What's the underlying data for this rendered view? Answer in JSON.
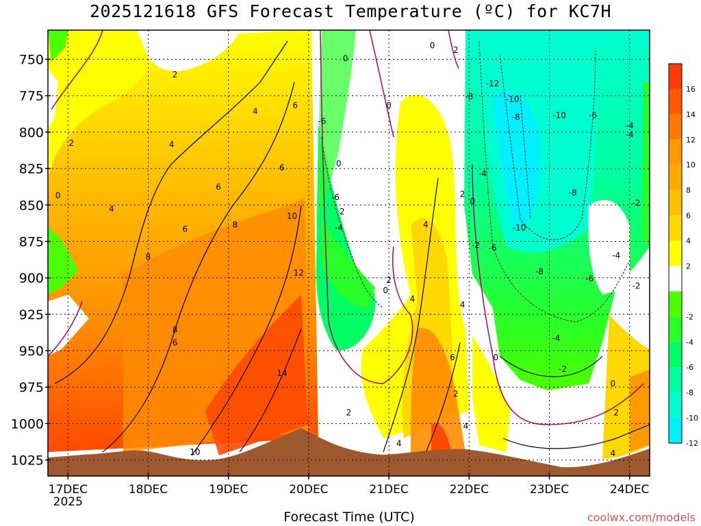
{
  "chart_data": {
    "type": "heatmap",
    "title": "2025121618 GFS Forecast Temperature (ºC) for KC7H",
    "xlabel": "Forecast Time (UTC)",
    "ylabel": "",
    "credit": "coolwx.com/models",
    "x_ticks": [
      {
        "label": "17DEC",
        "hours": 6
      },
      {
        "label": "18DEC",
        "hours": 30
      },
      {
        "label": "19DEC",
        "hours": 54
      },
      {
        "label": "20DEC",
        "hours": 78
      },
      {
        "label": "21DEC",
        "hours": 102
      },
      {
        "label": "22DEC",
        "hours": 126
      },
      {
        "label": "23DEC",
        "hours": 150
      },
      {
        "label": "24DEC",
        "hours": 174
      }
    ],
    "x_sublabel": "2025",
    "xlim_hours": [
      0,
      180
    ],
    "y_ticks": [
      750,
      775,
      800,
      825,
      850,
      875,
      900,
      925,
      950,
      975,
      1000,
      1025
    ],
    "ylim_hpa": [
      730,
      1036
    ],
    "colorbar": [
      {
        "min": 14,
        "max": 16,
        "color": "#ff3a00",
        "label": "16"
      },
      {
        "min": 12,
        "max": 14,
        "color": "#ff5a00",
        "label": "14"
      },
      {
        "min": 10,
        "max": 12,
        "color": "#ff7a00",
        "label": "12"
      },
      {
        "min": 8,
        "max": 10,
        "color": "#ff9a00",
        "label": "10"
      },
      {
        "min": 6,
        "max": 8,
        "color": "#ffaa00",
        "label": "8"
      },
      {
        "min": 4,
        "max": 6,
        "color": "#ffc000",
        "label": "6"
      },
      {
        "min": 2,
        "max": 4,
        "color": "#ffd800",
        "label": "4"
      },
      {
        "min": -2,
        "max": 2,
        "color": "#ffff00",
        "label": "2"
      },
      {
        "min": -2,
        "max": 2,
        "color": "#ffffff",
        "label": ""
      },
      {
        "min": -4,
        "max": -2,
        "color": "#4cff00",
        "label": "-2"
      },
      {
        "min": -6,
        "max": -4,
        "color": "#28ff28",
        "label": "-4"
      },
      {
        "min": -8,
        "max": -6,
        "color": "#00ff64",
        "label": "-6"
      },
      {
        "min": -10,
        "max": -8,
        "color": "#00ffa0",
        "label": "-8"
      },
      {
        "min": -12,
        "max": -10,
        "color": "#00ffd0",
        "label": "-10"
      },
      {
        "min": -14,
        "max": -12,
        "color": "#00f0ff",
        "label": "-12"
      }
    ],
    "regions": [
      {
        "name": "warm-morning-17dec",
        "hours": [
          0,
          18
        ],
        "temp_c": 2
      },
      {
        "name": "warm-sector-18-19dec",
        "hours": [
          18,
          60
        ],
        "temp_c": 6
      },
      {
        "name": "max-warm-20dec",
        "hours": [
          60,
          80
        ],
        "temp_c": 14
      },
      {
        "name": "cold-pocket-20-21dec",
        "hours": [
          80,
          104
        ],
        "temp_c": -4
      },
      {
        "name": "warm-band-21dec",
        "hours": [
          104,
          126
        ],
        "temp_c": 4
      },
      {
        "name": "cold-outbreak-22-24dec",
        "hours": [
          126,
          180
        ],
        "temp_c": -10
      }
    ],
    "contour_labels": [
      {
        "text": "2",
        "hours": 38,
        "hpa": 762
      },
      {
        "text": "4",
        "hours": 37,
        "hpa": 810
      },
      {
        "text": "6",
        "hours": 51,
        "hpa": 839
      },
      {
        "text": "8",
        "hours": 30,
        "hpa": 887
      },
      {
        "text": "8",
        "hours": 56,
        "hpa": 865
      },
      {
        "text": "6",
        "hours": 41,
        "hpa": 868
      },
      {
        "text": "4",
        "hours": 19,
        "hpa": 854
      },
      {
        "text": "2",
        "hours": 7,
        "hpa": 809
      },
      {
        "text": "0",
        "hours": 3,
        "hpa": 845
      },
      {
        "text": "4",
        "hours": 62,
        "hpa": 787
      },
      {
        "text": "6",
        "hours": 70,
        "hpa": 826
      },
      {
        "text": "6",
        "hours": 74,
        "hpa": 783
      },
      {
        "text": "10",
        "hours": 73,
        "hpa": 859
      },
      {
        "text": "12",
        "hours": 75,
        "hpa": 898
      },
      {
        "text": "14",
        "hours": 70,
        "hpa": 967
      },
      {
        "text": "10",
        "hours": 44,
        "hpa": 1021
      },
      {
        "text": "8",
        "hours": 38,
        "hpa": 937
      },
      {
        "text": "6",
        "hours": 38,
        "hpa": 946
      },
      {
        "text": "-6",
        "hours": 82,
        "hpa": 794
      },
      {
        "text": "-6",
        "hours": 86,
        "hpa": 846
      },
      {
        "text": "0",
        "hours": 89,
        "hpa": 751
      },
      {
        "text": "0",
        "hours": 102,
        "hpa": 783
      },
      {
        "text": "0",
        "hours": 87,
        "hpa": 823
      },
      {
        "text": "2",
        "hours": 88,
        "hpa": 856
      },
      {
        "text": "-4",
        "hours": 87,
        "hpa": 867
      },
      {
        "text": "2",
        "hours": 102,
        "hpa": 903
      },
      {
        "text": "0",
        "hours": 101,
        "hpa": 910
      },
      {
        "text": "4",
        "hours": 109,
        "hpa": 916
      },
      {
        "text": "4",
        "hours": 113,
        "hpa": 865
      },
      {
        "text": "0",
        "hours": 115,
        "hpa": 742
      },
      {
        "text": "2",
        "hours": 122,
        "hpa": 745
      },
      {
        "text": "2",
        "hours": 124,
        "hpa": 844
      },
      {
        "text": "0",
        "hours": 127,
        "hpa": 849
      },
      {
        "text": "4",
        "hours": 124,
        "hpa": 920
      },
      {
        "text": "6",
        "hours": 121,
        "hpa": 956
      },
      {
        "text": "2",
        "hours": 122,
        "hpa": 981
      },
      {
        "text": "4",
        "hours": 125,
        "hpa": 1003
      },
      {
        "text": "2",
        "hours": 90,
        "hpa": 994
      },
      {
        "text": "4",
        "hours": 105,
        "hpa": 1015
      },
      {
        "text": "-8",
        "hours": 126,
        "hpa": 777
      },
      {
        "text": "-12",
        "hours": 133,
        "hpa": 768
      },
      {
        "text": "-10",
        "hours": 139,
        "hpa": 779
      },
      {
        "text": "-8",
        "hours": 140,
        "hpa": 791
      },
      {
        "text": "-10",
        "hours": 153,
        "hpa": 790
      },
      {
        "text": "-6",
        "hours": 163,
        "hpa": 790
      },
      {
        "text": "-4",
        "hours": 174,
        "hpa": 797
      },
      {
        "text": "-4",
        "hours": 174,
        "hpa": 803
      },
      {
        "text": "-4",
        "hours": 130,
        "hpa": 830
      },
      {
        "text": "-8",
        "hours": 157,
        "hpa": 843
      },
      {
        "text": "-10",
        "hours": 141,
        "hpa": 867
      },
      {
        "text": "-2",
        "hours": 128,
        "hpa": 879
      },
      {
        "text": "-6",
        "hours": 133,
        "hpa": 881
      },
      {
        "text": "-8",
        "hours": 147,
        "hpa": 897
      },
      {
        "text": "-6",
        "hours": 162,
        "hpa": 902
      },
      {
        "text": "-4",
        "hours": 170,
        "hpa": 886
      },
      {
        "text": "-2",
        "hours": 176,
        "hpa": 850
      },
      {
        "text": "-2",
        "hours": 176,
        "hpa": 907
      },
      {
        "text": "-4",
        "hours": 152,
        "hpa": 943
      },
      {
        "text": "-2",
        "hours": 154,
        "hpa": 964
      },
      {
        "text": "0",
        "hours": 134,
        "hpa": 956
      },
      {
        "text": "0",
        "hours": 169,
        "hpa": 974
      },
      {
        "text": "2",
        "hours": 170,
        "hpa": 994
      },
      {
        "text": "4",
        "hours": 169,
        "hpa": 1022
      }
    ]
  }
}
